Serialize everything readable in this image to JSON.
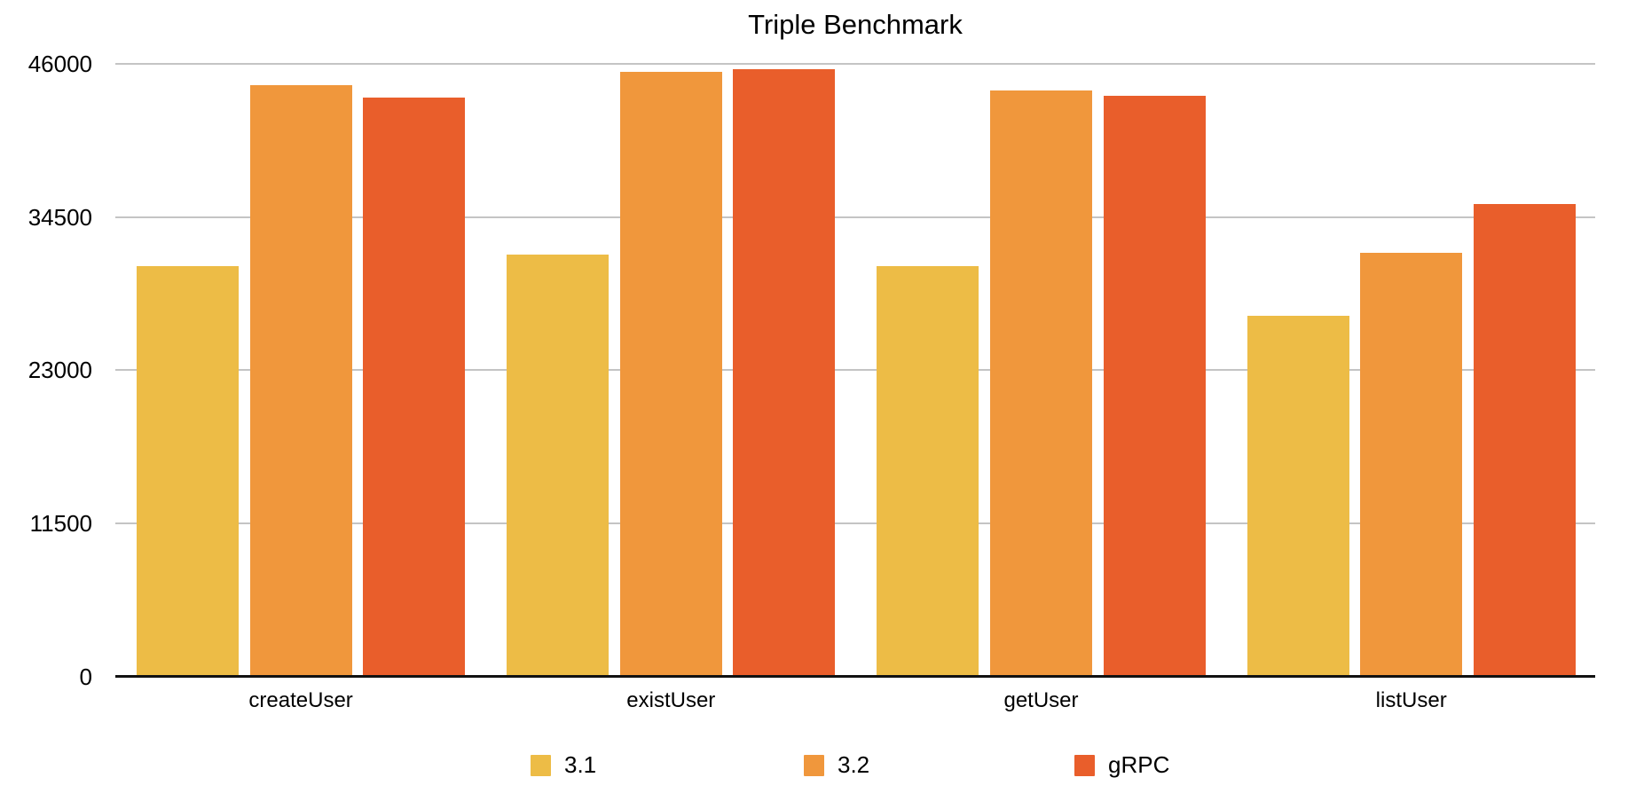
{
  "title": "Triple Benchmark",
  "chart_data": {
    "type": "bar",
    "title": "Triple Benchmark",
    "categories": [
      "createUser",
      "existUser",
      "getUser",
      "listUser"
    ],
    "series": [
      {
        "name": "3.1",
        "color": "#EDBC46",
        "values": [
          30800,
          31700,
          30800,
          27100
        ]
      },
      {
        "name": "3.2",
        "color": "#F0973C",
        "values": [
          44400,
          45400,
          44000,
          31800
        ]
      },
      {
        "name": "gRPC",
        "color": "#E95E2B",
        "values": [
          43500,
          45600,
          43600,
          35500
        ]
      }
    ],
    "ylim": [
      0,
      46000
    ],
    "yticks": [
      0,
      11500,
      23000,
      34500,
      46000
    ],
    "ytick_labels": [
      "0",
      "11500",
      "23000",
      "34500",
      "46000"
    ],
    "grid": true,
    "legend_position": "bottom",
    "colors": {
      "grid": "#C4C4C4",
      "axis": "#111111",
      "text": "#000000",
      "background": "#FFFFFF"
    }
  }
}
